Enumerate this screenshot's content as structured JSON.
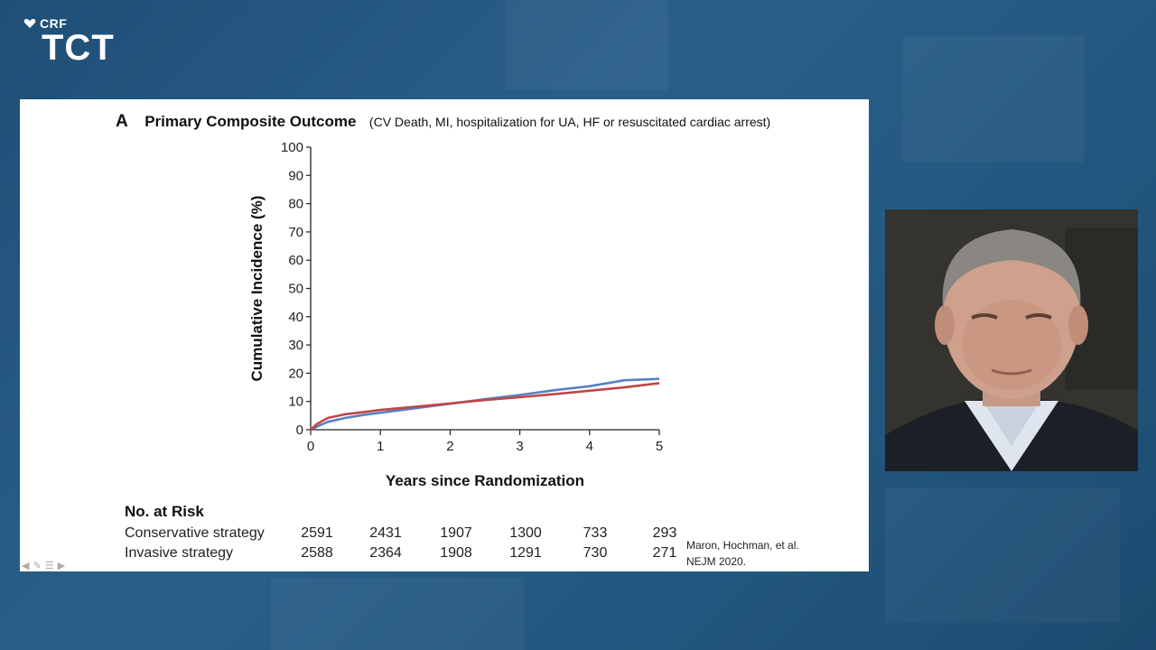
{
  "logo": {
    "brand": "CRF",
    "name": "TCT"
  },
  "slide": {
    "panel_letter": "A",
    "title": "Primary Composite Outcome",
    "subtitle": "(CV Death, MI, hospitalization for UA, HF or resuscitated cardiac arrest)",
    "risk_table": {
      "title": "No. at Risk",
      "rows": [
        {
          "label": "Conservative strategy",
          "values": [
            "2591",
            "2431",
            "1907",
            "1300",
            "733",
            "293"
          ]
        },
        {
          "label": "Invasive strategy",
          "values": [
            "2588",
            "2364",
            "1908",
            "1291",
            "730",
            "271"
          ]
        }
      ]
    },
    "citation_line1": "Maron, Hochman, et al.",
    "citation_line2": "NEJM 2020."
  },
  "chart_data": {
    "type": "line",
    "xlabel": "Years since Randomization",
    "ylabel": "Cumulative Incidence (%)",
    "xlim": [
      0,
      5
    ],
    "ylim": [
      0,
      100
    ],
    "xticks": [
      0,
      1,
      2,
      3,
      4,
      5
    ],
    "yticks": [
      0,
      10,
      20,
      30,
      40,
      50,
      60,
      70,
      80,
      90,
      100
    ],
    "grid": false,
    "series": [
      {
        "color": "#5b7fc4",
        "x": [
          0,
          0.1,
          0.25,
          0.5,
          0.75,
          1,
          1.5,
          2,
          2.5,
          3,
          3.5,
          4,
          4.5,
          5
        ],
        "y": [
          0,
          1.2,
          2.8,
          4.2,
          5.2,
          6.0,
          7.6,
          9.2,
          10.8,
          12.3,
          14.0,
          15.4,
          17.5,
          18.0
        ]
      },
      {
        "color": "#c04646",
        "x": [
          0,
          0.1,
          0.25,
          0.5,
          0.75,
          1,
          1.5,
          2,
          2.5,
          3,
          3.5,
          4,
          4.5,
          5
        ],
        "y": [
          0,
          2.2,
          4.2,
          5.5,
          6.2,
          7.0,
          8.1,
          9.3,
          10.5,
          11.5,
          12.6,
          13.8,
          15.0,
          16.5
        ]
      }
    ]
  }
}
